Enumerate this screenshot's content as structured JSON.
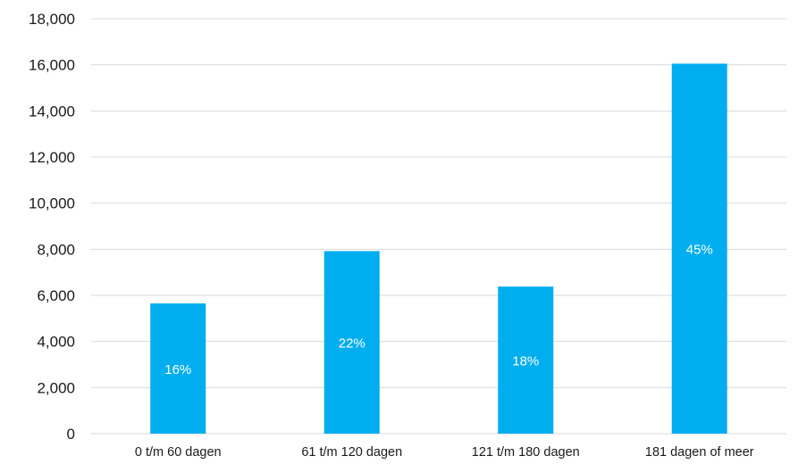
{
  "chart_data": {
    "type": "bar",
    "title": "",
    "xlabel": "",
    "ylabel": "",
    "categories": [
      "0 t/m 60 dagen",
      "61 t/m 120 dagen",
      "121 t/m 180 dagen",
      "181 dagen of meer"
    ],
    "values": [
      5650,
      7920,
      6380,
      16050
    ],
    "data_labels": [
      "16%",
      "22%",
      "18%",
      "45%"
    ],
    "ylim": [
      0,
      18000
    ],
    "yticks": [
      0,
      2000,
      4000,
      6000,
      8000,
      10000,
      12000,
      14000,
      16000,
      18000
    ],
    "ytick_labels": [
      "0",
      "2,000",
      "4,000",
      "6,000",
      "8,000",
      "10,000",
      "12,000",
      "14,000",
      "16,000",
      "18,000"
    ],
    "grid": true,
    "legend": "none",
    "bar_color": "#00AEEF",
    "grid_color": "#D9D9D9"
  }
}
